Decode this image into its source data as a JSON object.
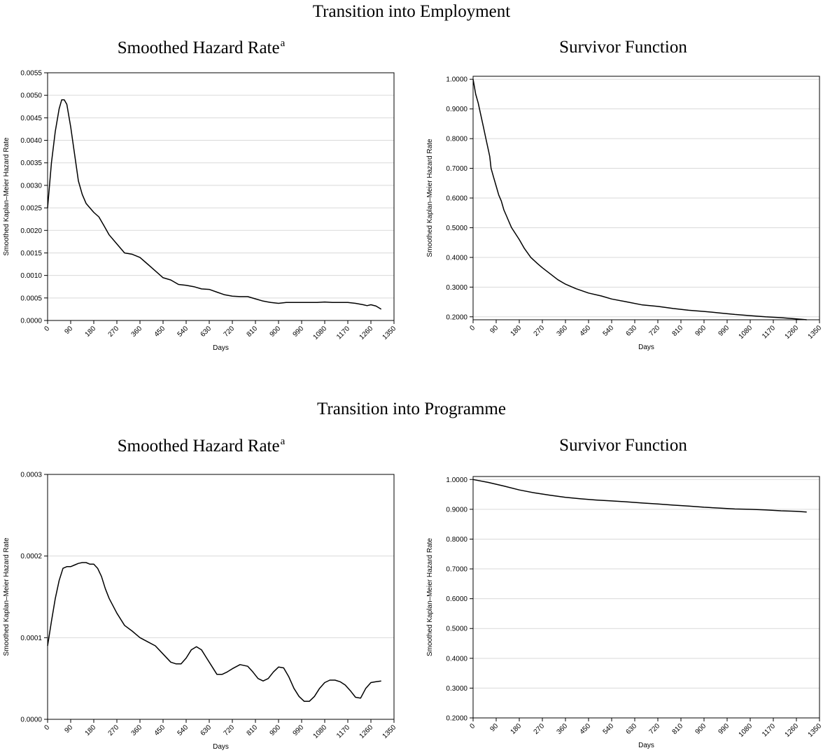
{
  "sections": [
    {
      "title": "Transition into Employment",
      "panels": [
        {
          "title": "Smoothed Hazard Rate",
          "superscript": "a"
        },
        {
          "title": "Survivor Function",
          "superscript": ""
        }
      ]
    },
    {
      "title": "Transition into Programme",
      "panels": [
        {
          "title": "Smoothed Hazard Rate",
          "superscript": "a"
        },
        {
          "title": "Survivor Function",
          "superscript": ""
        }
      ]
    }
  ],
  "chart_data": [
    {
      "type": "line",
      "xlabel": "Days",
      "ylabel": "Smoothed Kaplan–Meier Hazard Rate",
      "xlim": [
        0,
        1350
      ],
      "ylim": [
        0,
        0.0055
      ],
      "xticks": [
        "0",
        "90",
        "180",
        "270",
        "360",
        "450",
        "540",
        "630",
        "720",
        "810",
        "900",
        "990",
        "1080",
        "1170",
        "1260",
        "1350"
      ],
      "yticks": [
        "0.0000",
        "0.0005",
        "0.0010",
        "0.0015",
        "0.0020",
        "0.0025",
        "0.0030",
        "0.0035",
        "0.0040",
        "0.0045",
        "0.0050",
        "0.0055"
      ],
      "grid": true,
      "series": [
        {
          "x": [
            0,
            15,
            30,
            45,
            55,
            65,
            75,
            90,
            105,
            120,
            135,
            150,
            165,
            180,
            200,
            220,
            240,
            270,
            300,
            330,
            360,
            390,
            420,
            450,
            480,
            510,
            540,
            570,
            600,
            630,
            660,
            690,
            720,
            750,
            780,
            810,
            840,
            870,
            900,
            930,
            960,
            990,
            1020,
            1050,
            1080,
            1110,
            1140,
            1170,
            1200,
            1230,
            1245,
            1260,
            1280,
            1300
          ],
          "y": [
            0.0025,
            0.0035,
            0.0042,
            0.0047,
            0.0049,
            0.0049,
            0.0048,
            0.0043,
            0.0037,
            0.0031,
            0.0028,
            0.0026,
            0.0025,
            0.0024,
            0.0023,
            0.0021,
            0.0019,
            0.0017,
            0.0015,
            0.00147,
            0.0014,
            0.00125,
            0.0011,
            0.00095,
            0.0009,
            0.0008,
            0.00078,
            0.00075,
            0.0007,
            0.00069,
            0.00063,
            0.00057,
            0.00054,
            0.00053,
            0.00053,
            0.00048,
            0.00043,
            0.0004,
            0.00038,
            0.0004,
            0.0004,
            0.0004,
            0.0004,
            0.0004,
            0.00041,
            0.0004,
            0.0004,
            0.0004,
            0.00038,
            0.00035,
            0.00033,
            0.00035,
            0.00032,
            0.00025
          ]
        }
      ]
    },
    {
      "type": "line",
      "xlabel": "Days",
      "ylabel": "Smoothed Kaplan–Meier Hazard Rate",
      "xlim": [
        0,
        1350
      ],
      "ylim": [
        0.19,
        1.01
      ],
      "xticks": [
        "0",
        "90",
        "180",
        "270",
        "360",
        "450",
        "540",
        "630",
        "720",
        "810",
        "900",
        "990",
        "1080",
        "1170",
        "1260",
        "1350"
      ],
      "yticks": [
        "0.2000",
        "0.3000",
        "0.4000",
        "0.5000",
        "0.6000",
        "0.7000",
        "0.8000",
        "0.9000",
        "1.0000"
      ],
      "ytick_values": [
        0.2,
        0.3,
        0.4,
        0.5,
        0.6,
        0.7,
        0.8,
        0.9,
        1.0
      ],
      "grid": true,
      "series": [
        {
          "x": [
            0,
            10,
            20,
            30,
            40,
            50,
            60,
            65,
            70,
            80,
            90,
            100,
            110,
            120,
            130,
            140,
            150,
            165,
            180,
            200,
            225,
            250,
            270,
            300,
            330,
            360,
            400,
            450,
            500,
            540,
            600,
            660,
            720,
            780,
            840,
            900,
            960,
            1020,
            1080,
            1140,
            1200,
            1260,
            1300
          ],
          "y": [
            1.0,
            0.95,
            0.92,
            0.88,
            0.84,
            0.8,
            0.76,
            0.74,
            0.7,
            0.67,
            0.64,
            0.61,
            0.59,
            0.56,
            0.54,
            0.52,
            0.5,
            0.48,
            0.46,
            0.43,
            0.4,
            0.38,
            0.365,
            0.345,
            0.325,
            0.31,
            0.295,
            0.28,
            0.27,
            0.26,
            0.25,
            0.24,
            0.235,
            0.228,
            0.222,
            0.218,
            0.213,
            0.208,
            0.204,
            0.2,
            0.197,
            0.193,
            0.19
          ]
        }
      ]
    },
    {
      "type": "line",
      "xlabel": "Days",
      "ylabel": "Smoothed Kaplan–Meier Hazard Rate",
      "xlim": [
        0,
        1350
      ],
      "ylim": [
        0,
        0.0003
      ],
      "xticks": [
        "0",
        "90",
        "180",
        "270",
        "360",
        "450",
        "540",
        "630",
        "720",
        "810",
        "900",
        "990",
        "1080",
        "1170",
        "1260",
        "1350"
      ],
      "yticks": [
        "0.0000",
        "0.0001",
        "0.0002",
        "0.0003"
      ],
      "grid": true,
      "series": [
        {
          "x": [
            0,
            15,
            30,
            45,
            60,
            75,
            90,
            105,
            120,
            135,
            150,
            165,
            180,
            195,
            210,
            225,
            240,
            270,
            300,
            330,
            345,
            360,
            390,
            420,
            450,
            480,
            500,
            520,
            540,
            560,
            580,
            600,
            620,
            640,
            660,
            680,
            700,
            720,
            750,
            780,
            800,
            820,
            840,
            860,
            880,
            900,
            920,
            940,
            960,
            980,
            1000,
            1020,
            1040,
            1060,
            1080,
            1100,
            1120,
            1140,
            1160,
            1180,
            1200,
            1220,
            1240,
            1260,
            1280,
            1300
          ],
          "y": [
            9e-05,
            0.00012,
            0.000148,
            0.00017,
            0.000185,
            0.000187,
            0.000187,
            0.000189,
            0.000191,
            0.000192,
            0.000192,
            0.00019,
            0.00019,
            0.000185,
            0.000175,
            0.00016,
            0.000148,
            0.00013,
            0.000115,
            0.000108,
            0.000104,
            0.0001,
            9.5e-05,
            9e-05,
            8e-05,
            7e-05,
            6.8e-05,
            6.8e-05,
            7.5e-05,
            8.5e-05,
            8.9e-05,
            8.5e-05,
            7.5e-05,
            6.5e-05,
            5.5e-05,
            5.5e-05,
            5.8e-05,
            6.2e-05,
            6.7e-05,
            6.5e-05,
            5.8e-05,
            5e-05,
            4.7e-05,
            5e-05,
            5.8e-05,
            6.4e-05,
            6.3e-05,
            5.2e-05,
            3.8e-05,
            2.8e-05,
            2.2e-05,
            2.2e-05,
            2.8e-05,
            3.8e-05,
            4.5e-05,
            4.8e-05,
            4.8e-05,
            4.6e-05,
            4.2e-05,
            3.5e-05,
            2.7e-05,
            2.6e-05,
            3.8e-05,
            4.5e-05,
            4.6e-05,
            4.7e-05
          ]
        }
      ]
    },
    {
      "type": "line",
      "xlabel": "Days",
      "ylabel": "Smoothed Kaplan–Meier Hazard Rate",
      "xlim": [
        0,
        1350
      ],
      "ylim": [
        0.2,
        1.01
      ],
      "xticks": [
        "0",
        "90",
        "180",
        "270",
        "360",
        "450",
        "540",
        "630",
        "720",
        "810",
        "900",
        "990",
        "1080",
        "1170",
        "1260",
        "1350"
      ],
      "yticks": [
        "0.2000",
        "0.3000",
        "0.4000",
        "0.5000",
        "0.6000",
        "0.7000",
        "0.8000",
        "0.9000",
        "1.0000"
      ],
      "ytick_values": [
        0.2,
        0.3,
        0.4,
        0.5,
        0.6,
        0.7,
        0.8,
        0.9,
        1.0
      ],
      "grid": true,
      "series": [
        {
          "x": [
            0,
            60,
            120,
            180,
            240,
            300,
            360,
            420,
            480,
            540,
            600,
            660,
            720,
            780,
            840,
            900,
            960,
            1020,
            1080,
            1140,
            1200,
            1260,
            1300
          ],
          "y": [
            1.0,
            0.99,
            0.978,
            0.965,
            0.955,
            0.947,
            0.94,
            0.935,
            0.931,
            0.928,
            0.925,
            0.921,
            0.918,
            0.914,
            0.911,
            0.907,
            0.904,
            0.901,
            0.9,
            0.898,
            0.895,
            0.893,
            0.891
          ]
        }
      ]
    }
  ]
}
